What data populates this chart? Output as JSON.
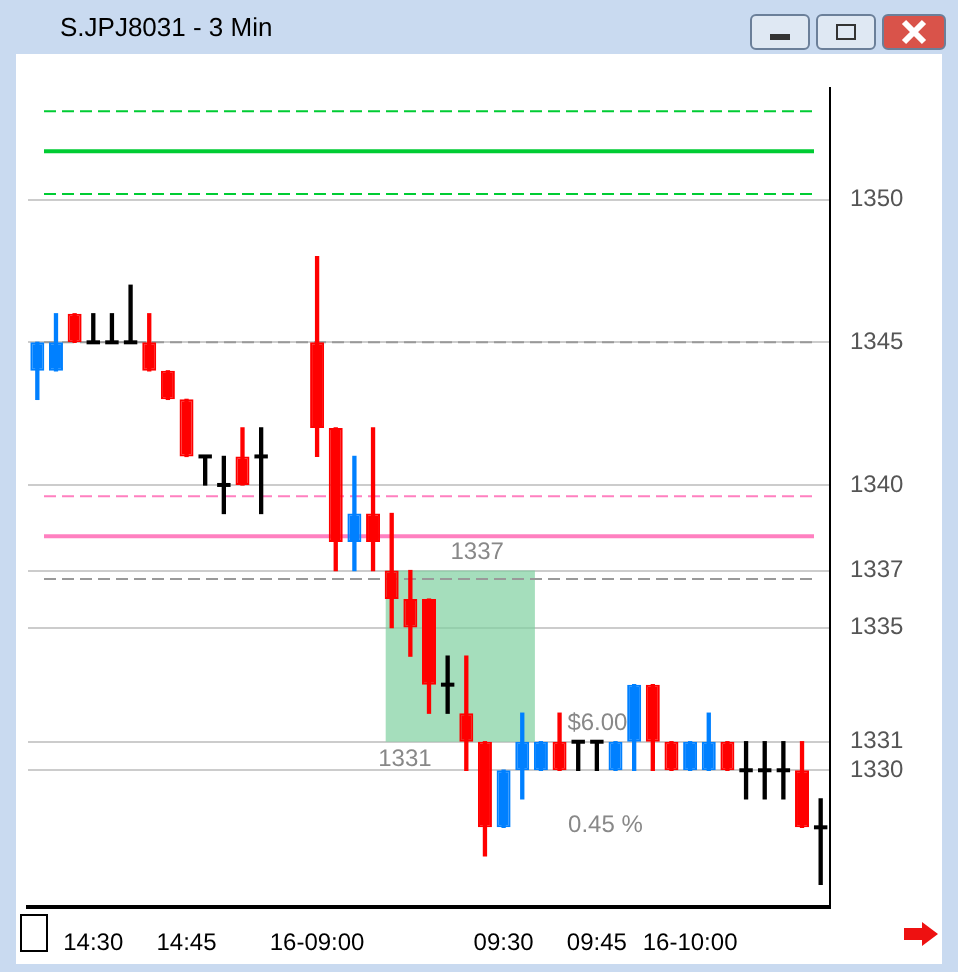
{
  "chart_data": {
    "type": "candlestick",
    "title": "S.JPJ8031 - 3 Min",
    "categories": [
      null,
      null,
      null,
      "14:30",
      null,
      null,
      null,
      null,
      "14:45",
      null,
      null,
      null,
      null,
      null,
      null,
      "16-09:00",
      null,
      null,
      null,
      null,
      null,
      null,
      null,
      null,
      null,
      "09:30",
      null,
      null,
      null,
      null,
      "09:45",
      null,
      null,
      null,
      null,
      "16-10:00",
      null,
      null,
      null,
      null,
      null,
      null,
      null
    ],
    "ohlc": [
      [
        1344,
        1345,
        1343,
        1345
      ],
      [
        1344,
        1346,
        1344,
        1345
      ],
      [
        1346,
        1346,
        1345,
        1345
      ],
      [
        1345,
        1346,
        1345,
        1345
      ],
      [
        1345,
        1346,
        1345,
        1345
      ],
      [
        1345,
        1347,
        1345,
        1345
      ],
      [
        1345,
        1346,
        1344,
        1344
      ],
      [
        1344,
        1344,
        1343,
        1343
      ],
      [
        1343,
        1343,
        1341,
        1341
      ],
      [
        1341,
        1341,
        1340,
        1341
      ],
      [
        1340,
        1341,
        1339,
        1340
      ],
      [
        1341,
        1342,
        1340,
        1340
      ],
      [
        1341,
        1342,
        1339,
        1341
      ],
      null,
      null,
      [
        1345,
        1348,
        1341,
        1342
      ],
      [
        1342,
        1342,
        1337,
        1338
      ],
      [
        1338,
        1341,
        1337,
        1339
      ],
      [
        1339,
        1342,
        1337,
        1338
      ],
      [
        1337,
        1339,
        1335,
        1336
      ],
      [
        1336,
        1337,
        1334,
        1335
      ],
      [
        1336,
        1336,
        1332,
        1333
      ],
      [
        1333,
        1334,
        1332,
        1333
      ],
      [
        1332,
        1334,
        1330,
        1331
      ],
      [
        1331,
        1331,
        1327,
        1328
      ],
      [
        1328,
        1330,
        1328,
        1330
      ],
      [
        1330,
        1332,
        1329,
        1331
      ],
      [
        1330,
        1331,
        1330,
        1331
      ],
      [
        1331,
        1332,
        1330,
        1330
      ],
      [
        1331,
        1331,
        1330,
        1331
      ],
      [
        1331,
        1331,
        1330,
        1331
      ],
      [
        1330,
        1331,
        1330,
        1331
      ],
      [
        1331,
        1333,
        1330,
        1333
      ],
      [
        1333,
        1333,
        1330,
        1331
      ],
      [
        1331,
        1331,
        1330,
        1330
      ],
      [
        1330,
        1331,
        1330,
        1331
      ],
      [
        1330,
        1332,
        1330,
        1331
      ],
      [
        1331,
        1331,
        1330,
        1330
      ],
      [
        1330,
        1331,
        1329,
        1330
      ],
      [
        1330,
        1331,
        1329,
        1330
      ],
      [
        1330,
        1331,
        1329,
        1330
      ],
      [
        1330,
        1331,
        1328,
        1328
      ],
      [
        1328,
        1329,
        1326,
        1328
      ]
    ],
    "colors": [
      "#0080ff",
      "#0080ff",
      "#ff0000",
      "#000000",
      "#000000",
      "#000000",
      "#ff0000",
      "#ff0000",
      "#ff0000",
      "#000000",
      "#000000",
      "#ff0000",
      "#000000",
      null,
      null,
      "#ff0000",
      "#ff0000",
      "#0080ff",
      "#ff0000",
      "#ff0000",
      "#ff0000",
      "#ff0000",
      "#000000",
      "#ff0000",
      "#ff0000",
      "#0080ff",
      "#0080ff",
      "#0080ff",
      "#ff0000",
      "#000000",
      "#000000",
      "#0080ff",
      "#0080ff",
      "#ff0000",
      "#ff0000",
      "#0080ff",
      "#0080ff",
      "#ff0000",
      "#000000",
      "#000000",
      "#000000",
      "#ff0000",
      "#000000"
    ],
    "ylim": [
      1325.2,
      1353.9
    ],
    "yticks": [
      1330,
      1331,
      1335,
      1337,
      1340,
      1345,
      1350
    ],
    "grid": "y",
    "legend": false,
    "ref_lines": [
      {
        "axis": "y",
        "value": 1353.1,
        "color": "#00cc33",
        "line_style": "dashed"
      },
      {
        "axis": "y",
        "value": 1351.7,
        "color": "#00cc33",
        "line_style": "solid"
      },
      {
        "axis": "y",
        "value": 1350.2,
        "color": "#00cc33",
        "line_style": "dashed"
      },
      {
        "axis": "y",
        "value": 1345,
        "color": "#999999",
        "line_style": "dashed"
      },
      {
        "axis": "y",
        "value": 1339.6,
        "color": "#ff80c0",
        "line_style": "dashed"
      },
      {
        "axis": "y",
        "value": 1338.2,
        "color": "#ff80c0",
        "line_style": "solid"
      },
      {
        "axis": "y",
        "value": 1336.7,
        "color": "#999999",
        "line_style": "dashed"
      }
    ],
    "bands": [
      {
        "axis": "y",
        "from": 1331,
        "to": 1337,
        "color": "#7fd09f"
      }
    ],
    "annotations": [
      {
        "text": "1337",
        "y": 1337
      },
      {
        "text": "1331",
        "y": 1331
      },
      {
        "text": "$6.00",
        "y": 1331
      },
      {
        "text": "0.45 %",
        "y": 1331
      }
    ]
  }
}
